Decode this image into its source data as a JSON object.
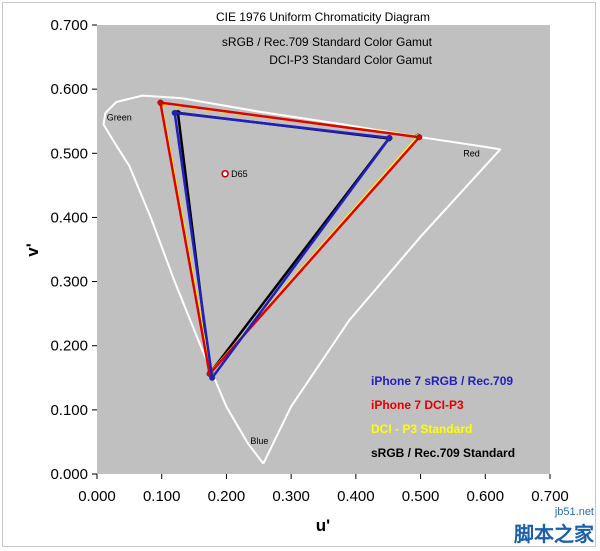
{
  "chart_data": {
    "type": "scatter",
    "title": "CIE 1976 Uniform Chromaticity Diagram",
    "subtitles": [
      "sRGB / Rec.709 Standard Color Gamut",
      "DCI-P3 Standard Color Gamut"
    ],
    "xlabel": "u'",
    "ylabel": "v'",
    "xlim": [
      0,
      0.7
    ],
    "ylim": [
      0,
      0.7
    ],
    "x_ticks": [
      "0.000",
      "0.100",
      "0.200",
      "0.300",
      "0.400",
      "0.500",
      "0.600",
      "0.700"
    ],
    "y_ticks": [
      "0.000",
      "0.100",
      "0.200",
      "0.300",
      "0.400",
      "0.500",
      "0.600",
      "0.700"
    ],
    "grid": false,
    "background": "#c0c0c0",
    "region_labels": [
      {
        "text": "Green",
        "u": 0.015,
        "v": 0.551
      },
      {
        "text": "Red",
        "u": 0.566,
        "v": 0.495
      },
      {
        "text": "Blue",
        "u": 0.237,
        "v": 0.047
      }
    ],
    "white_point": {
      "label": "D65",
      "u": 0.198,
      "v": 0.468
    },
    "spectral_locus": {
      "color": "#ffffff",
      "points": [
        [
          0.257,
          0.016
        ],
        [
          0.233,
          0.048
        ],
        [
          0.2,
          0.105
        ],
        [
          0.16,
          0.2
        ],
        [
          0.12,
          0.3
        ],
        [
          0.083,
          0.4
        ],
        [
          0.05,
          0.48
        ],
        [
          0.025,
          0.52
        ],
        [
          0.01,
          0.545
        ],
        [
          0.013,
          0.563
        ],
        [
          0.03,
          0.58
        ],
        [
          0.07,
          0.59
        ],
        [
          0.13,
          0.586
        ],
        [
          0.25,
          0.565
        ],
        [
          0.38,
          0.545
        ],
        [
          0.5,
          0.525
        ],
        [
          0.6,
          0.51
        ],
        [
          0.623,
          0.506
        ],
        [
          0.5,
          0.37
        ],
        [
          0.39,
          0.24
        ],
        [
          0.3,
          0.105
        ],
        [
          0.257,
          0.016
        ]
      ]
    },
    "series": [
      {
        "name": "sRGB / Rec.709 Standard",
        "color": "#000000",
        "points": [
          [
            0.451,
            0.523
          ],
          [
            0.125,
            0.563
          ],
          [
            0.175,
            0.158
          ]
        ]
      },
      {
        "name": "DCI - P3 Standard",
        "color": "#ffff00",
        "points": [
          [
            0.496,
            0.526
          ],
          [
            0.099,
            0.578
          ],
          [
            0.175,
            0.158
          ]
        ]
      },
      {
        "name": "iPhone 7 DCI-P3",
        "color": "#e00000",
        "points": [
          [
            0.498,
            0.525
          ],
          [
            0.098,
            0.579
          ],
          [
            0.174,
            0.156
          ]
        ]
      },
      {
        "name": "iPhone 7 sRGB / Rec.709",
        "color": "#2020c0",
        "points": [
          [
            0.452,
            0.524
          ],
          [
            0.12,
            0.563
          ],
          [
            0.178,
            0.15
          ]
        ]
      }
    ],
    "legend": {
      "placement": "bottom-right",
      "entries": [
        {
          "text": "iPhone 7 sRGB / Rec.709",
          "color": "#2020c0"
        },
        {
          "text": "iPhone 7 DCI-P3",
          "color": "#e00000"
        },
        {
          "text": "DCI - P3 Standard",
          "color": "#ffff00"
        },
        {
          "text": "sRGB / Rec.709 Standard",
          "color": "#000000"
        }
      ]
    }
  },
  "watermark": {
    "site": "jb51.net",
    "name": "脚本之家"
  }
}
